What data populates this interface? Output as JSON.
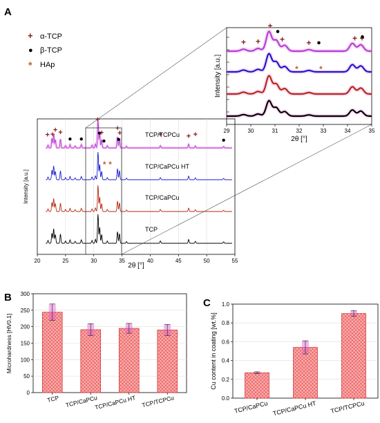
{
  "panels": {
    "a_label": "A",
    "b_label": "B",
    "c_label": "C"
  },
  "legend": [
    {
      "symbol": "+",
      "label": "α-TCP",
      "color": "#8b1a1a"
    },
    {
      "symbol": "●",
      "label": "β-TCP",
      "color": "#000000"
    },
    {
      "symbol": "*",
      "label": "HAp",
      "color": "#c0602a"
    }
  ],
  "colors": {
    "tcp": "#000000",
    "tcp_capcu": "#b22a12",
    "tcp_capcu_ht": "#1a1acc",
    "tcp_tcpcu": "#b040d8",
    "glow": "#f080e0",
    "bar_fill": "#f07070",
    "bar_edge": "#d03030",
    "alpha_marker": "#8b1a1a",
    "hap_marker": "#c0602a"
  },
  "chart_data": [
    {
      "type": "line",
      "panel": "A-main",
      "xlabel": "2θ [°]",
      "ylabel": "Intensity [a.u.]",
      "xlim": [
        20,
        55
      ],
      "xticks": [
        20,
        25,
        30,
        35,
        40,
        45,
        50,
        55
      ],
      "grid": true,
      "series": [
        {
          "name": "TCP",
          "key": "tcp"
        },
        {
          "name": "TCP/CaPCu",
          "key": "tcp_capcu"
        },
        {
          "name": "TCP/CaPCu HT",
          "key": "tcp_capcu_ht"
        },
        {
          "name": "TCP/TCPCu",
          "key": "tcp_tcpcu"
        }
      ],
      "markers": {
        "alpha": [
          21.8,
          22.7,
          23.2,
          24.1,
          30.7,
          31.4,
          34.2,
          34.6,
          41.8,
          46.8,
          48.0
        ],
        "beta": [
          25.8,
          27.8,
          31.0,
          31.8,
          34.4,
          53.0
        ],
        "hap": [
          31.9,
          32.9
        ]
      }
    },
    {
      "type": "line",
      "panel": "A-inset",
      "xlabel": "2θ [°]",
      "ylabel": "Intensity [a.u.]",
      "xlim": [
        29,
        35
      ],
      "xticks": [
        29,
        30,
        31,
        32,
        33,
        34,
        35
      ],
      "markers": {
        "alpha": [
          29.7,
          30.3,
          30.8,
          31.3,
          32.4,
          34.3,
          34.6
        ],
        "beta": [
          31.0,
          32.7,
          34.5
        ],
        "hap": [
          31.9,
          32.9
        ]
      }
    },
    {
      "type": "bar",
      "panel": "B",
      "categories": [
        "TCP",
        "TCP/CaPCu",
        "TCP/CaPCu HT",
        "TCP/TCPCu"
      ],
      "values": [
        244,
        191,
        195,
        190
      ],
      "errors": [
        25,
        18,
        15,
        17
      ],
      "ylabel": "Microhardness [HV0.1]",
      "ylim": [
        0,
        300
      ],
      "yticks": [
        0,
        50,
        100,
        150,
        200,
        250,
        300
      ]
    },
    {
      "type": "bar",
      "panel": "C",
      "categories": [
        "TCP/CaPCu",
        "TCP/CaPCu HT",
        "TCP/TCPCu"
      ],
      "values": [
        0.27,
        0.54,
        0.9
      ],
      "errors": [
        0.01,
        0.07,
        0.03
      ],
      "ylabel": "Cu content in coating [wt.%]",
      "ylim": [
        0,
        1.0
      ],
      "yticks": [
        0.0,
        0.2,
        0.4,
        0.6,
        0.8,
        1.0
      ]
    }
  ]
}
